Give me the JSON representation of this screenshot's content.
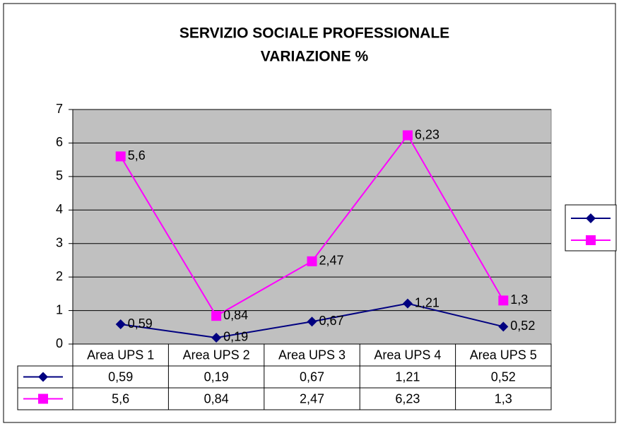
{
  "chart_data": {
    "type": "line",
    "title": [
      "SERVIZIO SOCIALE PROFESSIONALE",
      "VARIAZIONE %"
    ],
    "categories": [
      "Area UPS 1",
      "Area UPS 2",
      "Area UPS 3",
      "Area UPS 4",
      "Area UPS 5"
    ],
    "series": [
      {
        "color": "#000080",
        "marker": "diamond",
        "values": [
          0.59,
          0.19,
          0.67,
          1.21,
          0.52
        ],
        "value_labels": [
          "0,59",
          "0,19",
          "0,67",
          "1,21",
          "0,52"
        ]
      },
      {
        "color": "#ff00ff",
        "marker": "square",
        "values": [
          5.6,
          0.84,
          2.47,
          6.23,
          1.3
        ],
        "value_labels": [
          "5,6",
          "0,84",
          "2,47",
          "6,23",
          "1,3"
        ]
      }
    ],
    "ylim": [
      0,
      7
    ],
    "yticks": [
      0,
      1,
      2,
      3,
      4,
      5,
      6,
      7
    ],
    "grid": true,
    "plot_background": "#c0c0c0",
    "legend": "right",
    "data_table": true
  }
}
